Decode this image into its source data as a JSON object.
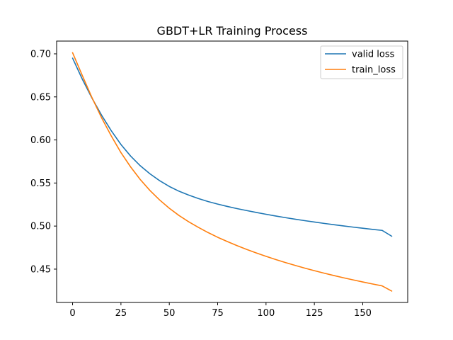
{
  "chart_data": {
    "type": "line",
    "title": "GBDT+LR Training Process",
    "xlabel": "",
    "ylabel": "",
    "xlim": [
      -8.25,
      173.25
    ],
    "ylim": [
      0.4113,
      0.7148
    ],
    "xticks": [
      0,
      25,
      50,
      75,
      100,
      125,
      150
    ],
    "yticks": [
      0.45,
      0.5,
      0.55,
      0.6,
      0.65,
      0.7
    ],
    "ytick_labels": [
      "0.45",
      "0.50",
      "0.55",
      "0.60",
      "0.65",
      "0.70"
    ],
    "grid": false,
    "legend_position": "top-right",
    "series": [
      {
        "name": "valid loss",
        "color": "#1f77b4",
        "x": [
          0,
          5,
          10,
          15,
          20,
          25,
          30,
          35,
          40,
          45,
          50,
          55,
          60,
          65,
          70,
          75,
          80,
          85,
          90,
          95,
          100,
          105,
          110,
          115,
          120,
          125,
          130,
          135,
          140,
          145,
          150,
          155,
          160,
          165
        ],
        "y": [
          0.695,
          0.6707,
          0.6487,
          0.6287,
          0.6107,
          0.5947,
          0.5813,
          0.57,
          0.5607,
          0.5527,
          0.546,
          0.5405,
          0.536,
          0.532,
          0.5285,
          0.5255,
          0.5228,
          0.5203,
          0.518,
          0.5158,
          0.5137,
          0.5117,
          0.5098,
          0.508,
          0.5063,
          0.5047,
          0.5031,
          0.5016,
          0.5002,
          0.4988,
          0.4975,
          0.4962,
          0.495,
          0.4882
        ]
      },
      {
        "name": "train_loss",
        "color": "#ff7f0e",
        "x": [
          0,
          5,
          10,
          15,
          20,
          25,
          30,
          35,
          40,
          45,
          50,
          55,
          60,
          65,
          70,
          75,
          80,
          85,
          90,
          95,
          100,
          105,
          110,
          115,
          120,
          125,
          130,
          135,
          140,
          145,
          150,
          155,
          160,
          165
        ],
        "y": [
          0.7013,
          0.675,
          0.6493,
          0.6257,
          0.6047,
          0.5853,
          0.5687,
          0.554,
          0.5413,
          0.5303,
          0.5207,
          0.5123,
          0.505,
          0.4985,
          0.4925,
          0.487,
          0.482,
          0.4773,
          0.4729,
          0.4688,
          0.4649,
          0.4612,
          0.4577,
          0.4544,
          0.4512,
          0.4482,
          0.4453,
          0.4426,
          0.44,
          0.4375,
          0.4351,
          0.4328,
          0.4306,
          0.4245
        ]
      }
    ]
  }
}
